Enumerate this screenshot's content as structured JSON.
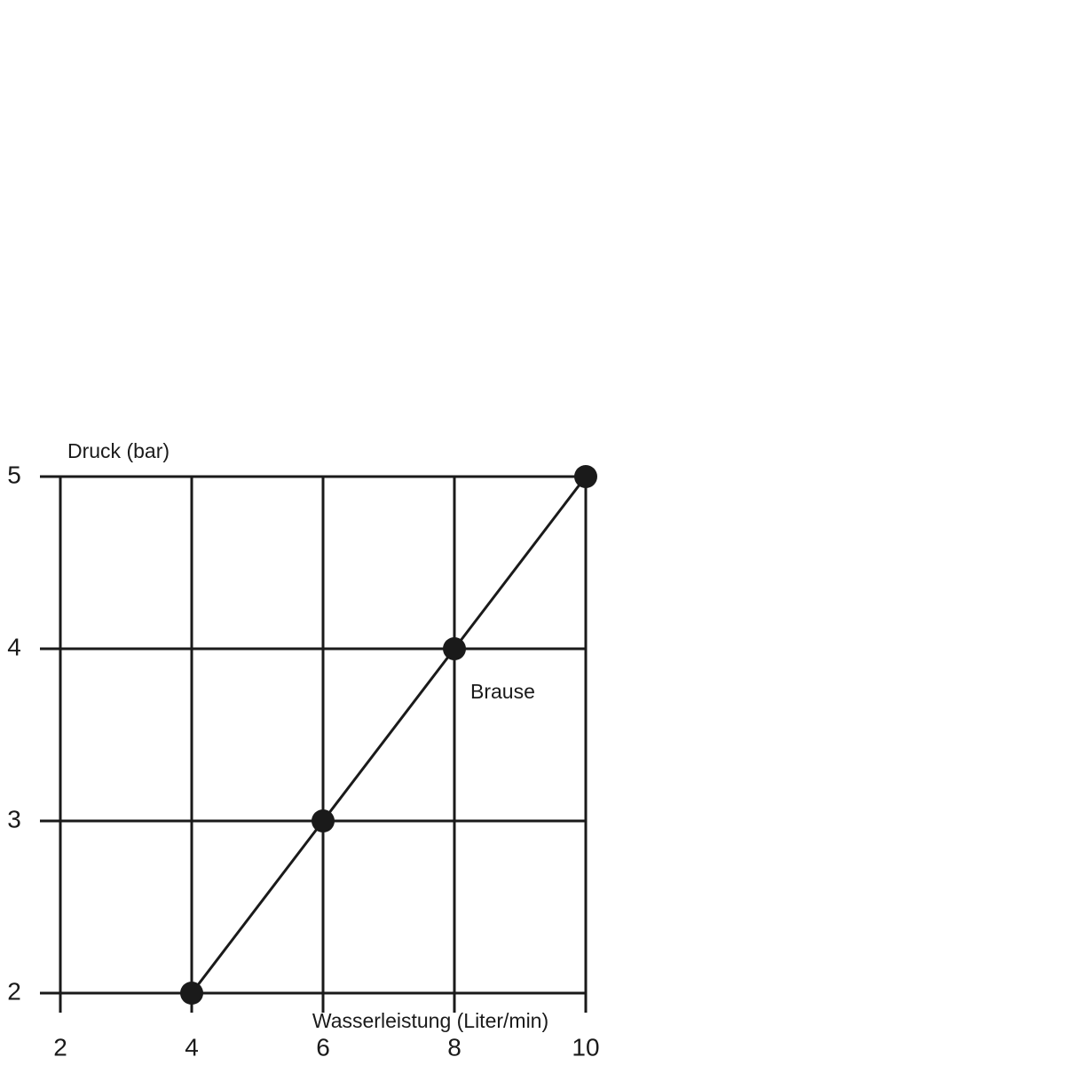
{
  "chart_data": {
    "type": "line",
    "x_label": "Wasserleistung (Liter/min)",
    "y_label": "Druck (bar)",
    "series": [
      {
        "name": "Brause",
        "color": "#1a1a1a",
        "x": [
          4,
          6,
          8,
          10
        ],
        "values": [
          2,
          3,
          4,
          5
        ]
      }
    ],
    "xlim": [
      2,
      10
    ],
    "xticks": [
      2,
      4,
      6,
      8,
      10
    ],
    "ylim": [
      2,
      5
    ],
    "yticks": [
      2,
      3,
      4,
      5
    ],
    "grid": true
  }
}
